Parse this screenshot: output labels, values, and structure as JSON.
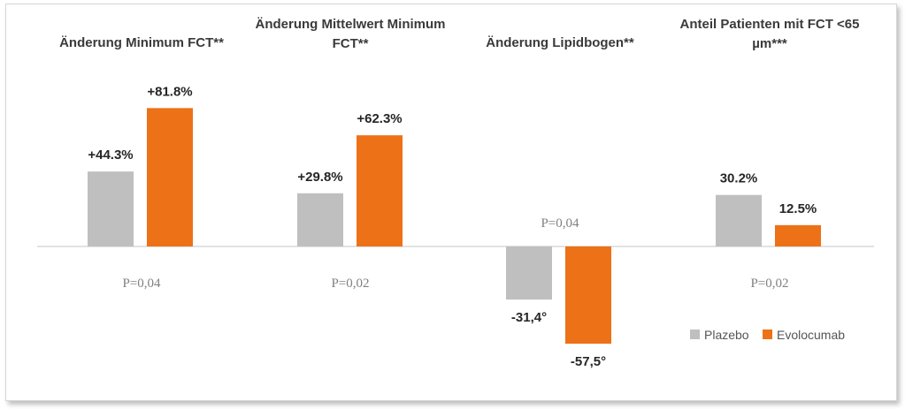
{
  "chart_data": {
    "type": "bar",
    "series": [
      {
        "name": "Plazebo",
        "color": "#BFBFBF",
        "values": [
          44.3,
          29.8,
          -31.4,
          30.2
        ]
      },
      {
        "name": "Evolocumab",
        "color": "#ED7117",
        "values": [
          81.8,
          62.3,
          -57.5,
          12.5
        ]
      }
    ],
    "groups": [
      {
        "title_lines": [
          "Änderung Minimum FCT**"
        ],
        "labels": [
          "+44.3%",
          "+81.8%"
        ],
        "p_value": "P=0,04"
      },
      {
        "title_lines": [
          "Änderung Mittelwert Minimum",
          "FCT**"
        ],
        "labels": [
          "+29.8%",
          "+62.3%"
        ],
        "p_value": "P=0,02"
      },
      {
        "title_lines": [
          "Änderung Lipidbogen**"
        ],
        "labels": [
          "-31,4°",
          "-57,5°"
        ],
        "p_value": "P=0,04"
      },
      {
        "title_lines": [
          "Anteil Patienten mit FCT <65",
          "µm***"
        ],
        "labels": [
          "30.2%",
          "12.5%"
        ],
        "p_value": "P=0,02"
      }
    ],
    "legend_position": "bottom-right",
    "grid": false
  }
}
